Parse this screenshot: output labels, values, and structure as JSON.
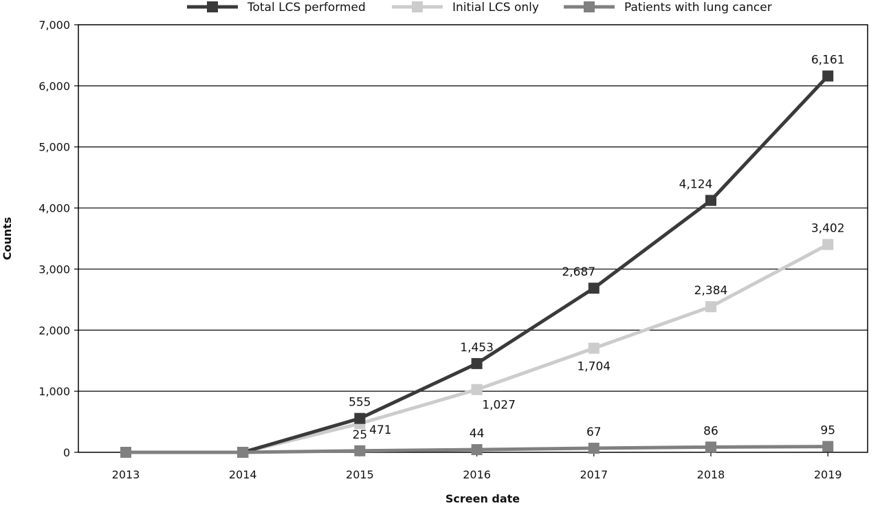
{
  "chart_data": {
    "type": "line",
    "title": "",
    "xlabel": "Screen date",
    "ylabel": "Counts",
    "categories": [
      "2013",
      "2014",
      "2015",
      "2016",
      "2017",
      "2018",
      "2019"
    ],
    "ylim": [
      0,
      7000
    ],
    "yticks": [
      0,
      1000,
      2000,
      3000,
      4000,
      5000,
      6000,
      7000
    ],
    "ytick_labels": [
      "0",
      "1,000",
      "2,000",
      "3,000",
      "4,000",
      "5,000",
      "6,000",
      "7,000"
    ],
    "grid": "horizontal",
    "legend_position": "top",
    "series": [
      {
        "name": "Total LCS performed",
        "color": "#3a3a3a",
        "marker": "square",
        "values": [
          0,
          0,
          555,
          1453,
          2687,
          4124,
          6161
        ],
        "labels": [
          "",
          "",
          "555",
          "1,453",
          "2,687",
          "4,124",
          "6,161"
        ]
      },
      {
        "name": "Initial LCS only",
        "color": "#cccccc",
        "marker": "square",
        "values": [
          0,
          0,
          471,
          1027,
          1704,
          2384,
          3402
        ],
        "labels": [
          "",
          "",
          "471",
          "1,027",
          "1,704",
          "2,384",
          "3,402"
        ]
      },
      {
        "name": "Patients with lung cancer",
        "color": "#808080",
        "marker": "square",
        "values": [
          0,
          0,
          25,
          44,
          67,
          86,
          95
        ],
        "labels": [
          "",
          "",
          "25",
          "44",
          "67",
          "86",
          "95"
        ]
      }
    ]
  }
}
